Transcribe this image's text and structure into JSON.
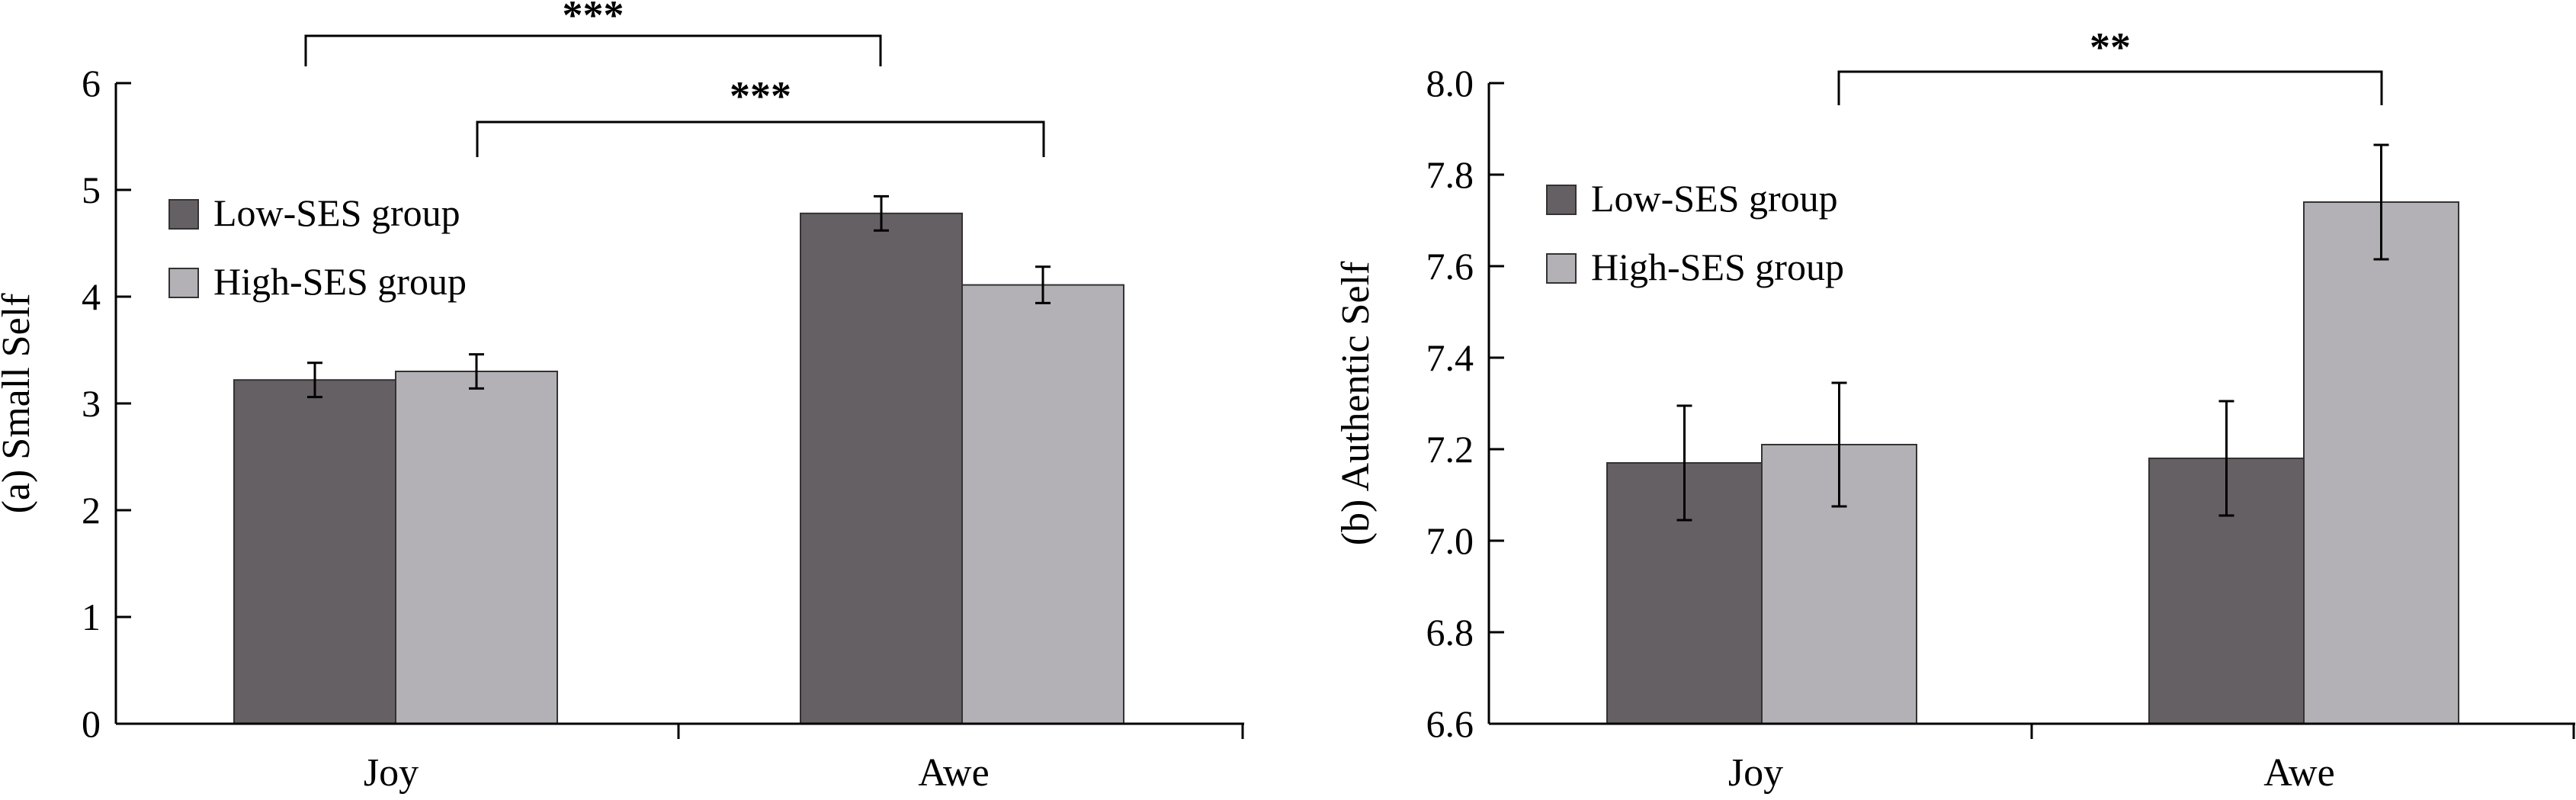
{
  "colors": {
    "low": "#656064",
    "high": "#b3b1b5",
    "axis": "#000000",
    "bar_edge": "#333333"
  },
  "chart_data": [
    {
      "type": "bar",
      "ylabel": "(a) Small Self",
      "categories": [
        "Joy",
        "Awe"
      ],
      "ylim": [
        0,
        6
      ],
      "yticks": [
        "0",
        "1",
        "2",
        "3",
        "4",
        "5",
        "6"
      ],
      "legend_position": "upper-left",
      "series": [
        {
          "name": "Low-SES group",
          "values": [
            3.22,
            4.78
          ],
          "errors": [
            0.16,
            0.16
          ]
        },
        {
          "name": "High-SES group",
          "values": [
            3.3,
            4.11
          ],
          "errors": [
            0.16,
            0.17
          ]
        }
      ],
      "annotations": [
        {
          "label": "***",
          "from_category": 0,
          "from_series": 0,
          "to_category": 1,
          "to_series": 0
        },
        {
          "label": "***",
          "from_category": 0,
          "from_series": 1,
          "to_category": 1,
          "to_series": 1
        }
      ]
    },
    {
      "type": "bar",
      "ylabel": "(b) Authentic Self",
      "categories": [
        "Joy",
        "Awe"
      ],
      "ylim": [
        6.6,
        8.0
      ],
      "yticks": [
        "6.6",
        "6.8",
        "7.0",
        "7.2",
        "7.4",
        "7.6",
        "7.8",
        "8.0"
      ],
      "legend_position": "upper-left",
      "series": [
        {
          "name": "Low-SES group",
          "values": [
            7.17,
            7.18
          ],
          "errors": [
            0.125,
            0.125
          ]
        },
        {
          "name": "High-SES group",
          "values": [
            7.21,
            7.74
          ],
          "errors": [
            0.135,
            0.125
          ]
        }
      ],
      "annotations": [
        {
          "label": "**",
          "from_category": 0,
          "from_series": 1,
          "to_category": 1,
          "to_series": 1
        }
      ]
    }
  ]
}
